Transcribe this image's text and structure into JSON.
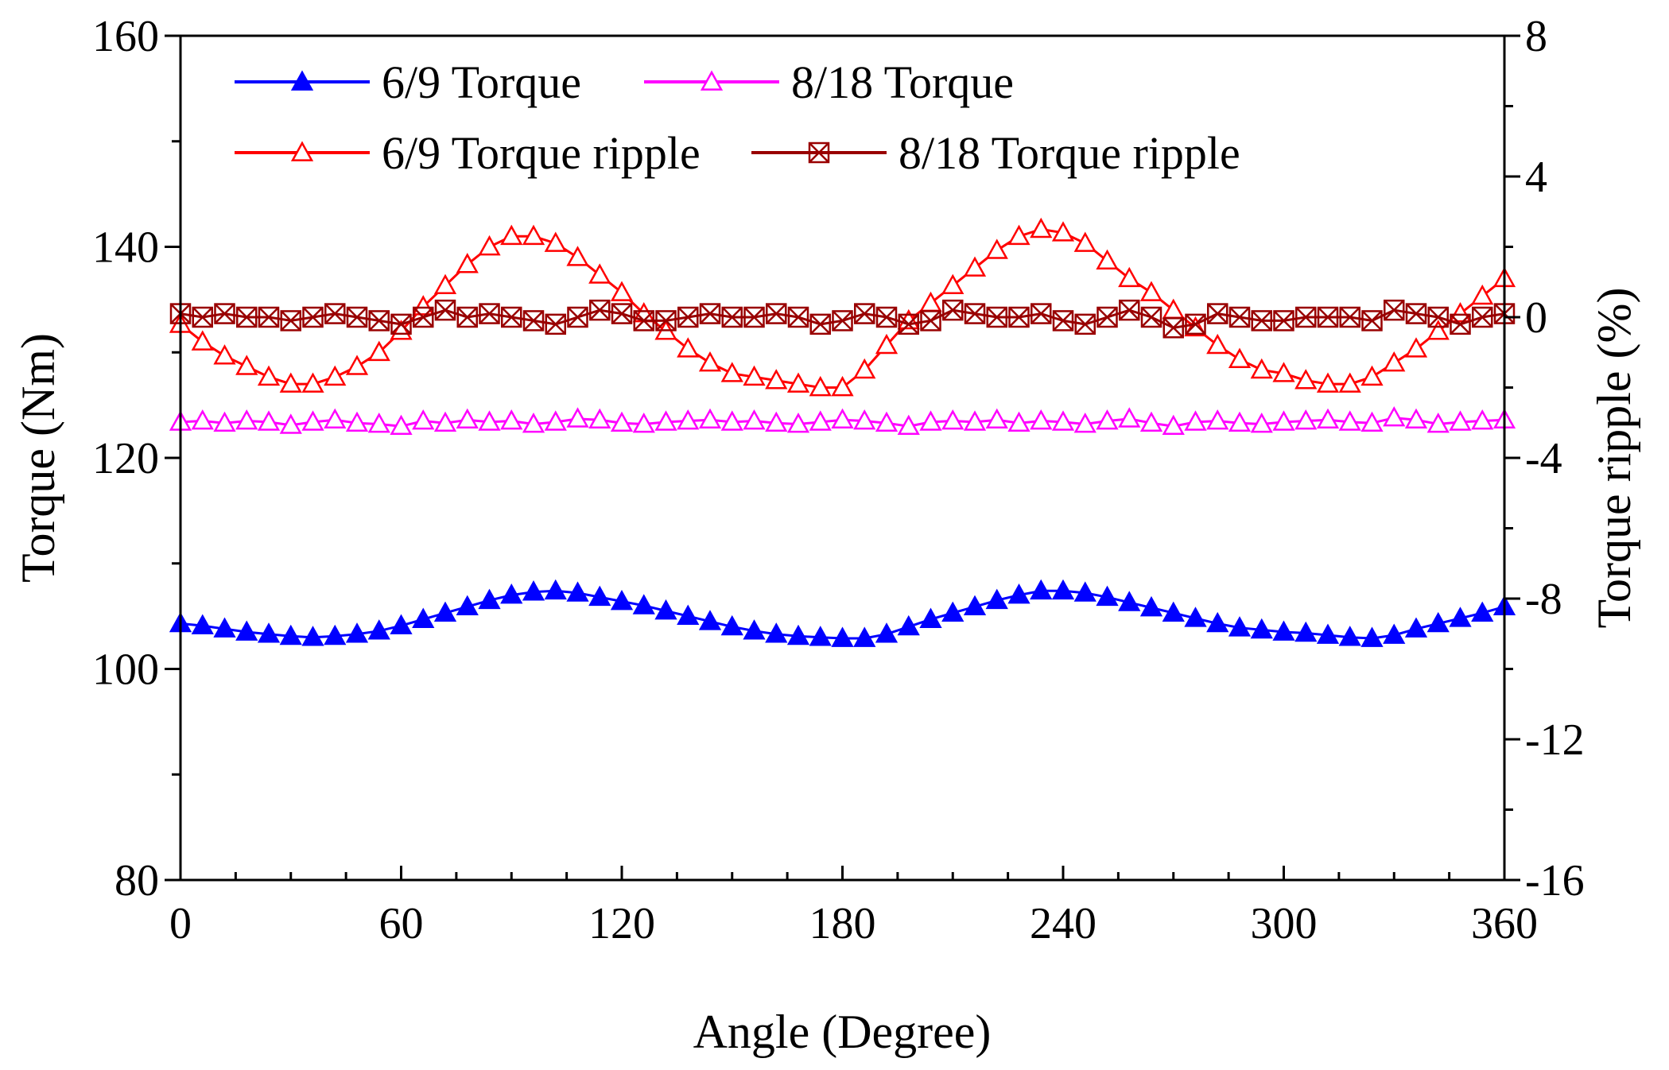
{
  "chart_data": {
    "type": "line",
    "x": [
      0,
      6,
      12,
      18,
      24,
      30,
      36,
      42,
      48,
      54,
      60,
      66,
      72,
      78,
      84,
      90,
      96,
      102,
      108,
      114,
      120,
      126,
      132,
      138,
      144,
      150,
      156,
      162,
      168,
      174,
      180,
      186,
      192,
      198,
      204,
      210,
      216,
      222,
      228,
      234,
      240,
      246,
      252,
      258,
      264,
      270,
      276,
      282,
      288,
      294,
      300,
      306,
      312,
      318,
      324,
      330,
      336,
      342,
      348,
      354,
      360
    ],
    "xlabel": "Angle (Degree)",
    "xlim": [
      0,
      360
    ],
    "xticks": [
      0,
      60,
      120,
      180,
      240,
      300,
      360
    ],
    "x_tick_labels": [
      "0",
      "60",
      "120",
      "180",
      "240",
      "300",
      "360"
    ],
    "y_left": {
      "label": "Torque (Nm)",
      "lim": [
        80,
        160
      ],
      "ticks": [
        80,
        100,
        120,
        140,
        160
      ],
      "tick_labels": [
        "80",
        "100",
        "120",
        "140",
        "160"
      ]
    },
    "y_right": {
      "label": "Torque ripple (%)",
      "lim": [
        -16,
        8
      ],
      "ticks": [
        -16,
        -12,
        -8,
        -4,
        0,
        4,
        8
      ],
      "tick_labels": [
        "-16",
        "-12",
        "-8",
        "-4",
        "0",
        "4",
        "8"
      ]
    },
    "series": [
      {
        "name": "6/9 Torque",
        "axis": "left",
        "color": "#0000ff",
        "marker": "triangle-filled",
        "values": [
          104.3,
          104.1,
          103.8,
          103.5,
          103.3,
          103.1,
          103.0,
          103.1,
          103.3,
          103.6,
          104.1,
          104.7,
          105.3,
          105.9,
          106.5,
          107.0,
          107.3,
          107.4,
          107.2,
          106.8,
          106.4,
          106.0,
          105.5,
          105.0,
          104.5,
          104.0,
          103.6,
          103.3,
          103.1,
          103.0,
          102.9,
          102.9,
          103.3,
          104.0,
          104.7,
          105.3,
          105.9,
          106.5,
          107.0,
          107.4,
          107.4,
          107.2,
          106.8,
          106.3,
          105.8,
          105.3,
          104.8,
          104.3,
          103.9,
          103.7,
          103.5,
          103.4,
          103.2,
          103.0,
          102.9,
          103.2,
          103.8,
          104.3,
          104.8,
          105.3,
          105.9
        ]
      },
      {
        "name": "8/18 Torque",
        "axis": "left",
        "color": "#ff00ff",
        "marker": "triangle-open",
        "values": [
          123.4,
          123.5,
          123.3,
          123.5,
          123.4,
          123.1,
          123.4,
          123.6,
          123.3,
          123.2,
          123.0,
          123.5,
          123.3,
          123.6,
          123.4,
          123.5,
          123.2,
          123.4,
          123.7,
          123.6,
          123.3,
          123.2,
          123.4,
          123.5,
          123.6,
          123.4,
          123.5,
          123.3,
          123.2,
          123.4,
          123.6,
          123.5,
          123.3,
          123.0,
          123.4,
          123.5,
          123.4,
          123.6,
          123.3,
          123.5,
          123.4,
          123.2,
          123.5,
          123.7,
          123.3,
          123.0,
          123.4,
          123.5,
          123.3,
          123.2,
          123.4,
          123.5,
          123.6,
          123.4,
          123.3,
          123.8,
          123.6,
          123.2,
          123.4,
          123.5,
          123.6
        ]
      },
      {
        "name": "6/9 Torque ripple",
        "axis": "right",
        "color": "#ff0000",
        "marker": "triangle-open",
        "values": [
          -0.2,
          -0.7,
          -1.1,
          -1.4,
          -1.7,
          -1.9,
          -1.9,
          -1.7,
          -1.4,
          -1.0,
          -0.4,
          0.3,
          0.9,
          1.5,
          2.0,
          2.3,
          2.3,
          2.1,
          1.7,
          1.2,
          0.7,
          0.1,
          -0.4,
          -0.9,
          -1.3,
          -1.6,
          -1.7,
          -1.8,
          -1.9,
          -2.0,
          -2.0,
          -1.5,
          -0.8,
          -0.1,
          0.4,
          0.9,
          1.4,
          1.9,
          2.3,
          2.5,
          2.4,
          2.1,
          1.6,
          1.1,
          0.7,
          0.2,
          -0.3,
          -0.8,
          -1.2,
          -1.5,
          -1.6,
          -1.8,
          -1.9,
          -1.9,
          -1.7,
          -1.3,
          -0.9,
          -0.4,
          0.1,
          0.6,
          1.1
        ]
      },
      {
        "name": "8/18 Torque ripple",
        "axis": "right",
        "color": "#990000",
        "marker": "x-box",
        "values": [
          0.1,
          0.0,
          0.1,
          0.0,
          0.0,
          -0.1,
          0.0,
          0.1,
          0.0,
          -0.1,
          -0.2,
          0.0,
          0.2,
          0.0,
          0.1,
          0.0,
          -0.1,
          -0.2,
          0.0,
          0.2,
          0.1,
          -0.1,
          -0.1,
          0.0,
          0.1,
          0.0,
          0.0,
          0.1,
          0.0,
          -0.2,
          -0.1,
          0.1,
          0.0,
          -0.2,
          -0.1,
          0.2,
          0.1,
          0.0,
          0.0,
          0.1,
          -0.1,
          -0.2,
          0.0,
          0.2,
          0.0,
          -0.3,
          -0.2,
          0.1,
          0.0,
          -0.1,
          -0.1,
          0.0,
          0.0,
          0.0,
          -0.1,
          0.2,
          0.1,
          0.0,
          -0.2,
          0.0,
          0.1
        ]
      }
    ]
  }
}
